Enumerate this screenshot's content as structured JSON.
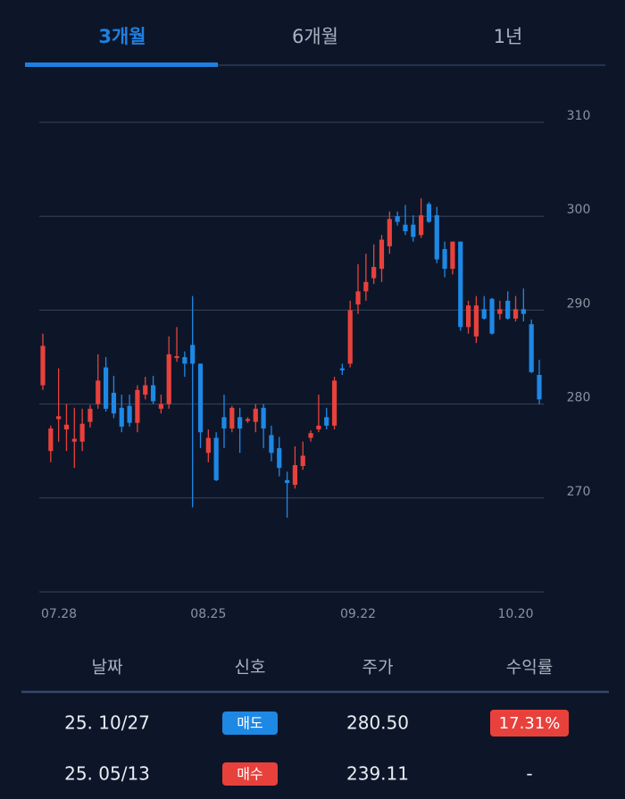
{
  "tabs": [
    "3개월",
    "6개월",
    "1년"
  ],
  "chart_data": {
    "type": "candlestick",
    "categories": [
      "07.28",
      null,
      null,
      null,
      null,
      null,
      null,
      null,
      null,
      null,
      null,
      null,
      null,
      null,
      null,
      null,
      null,
      null,
      null,
      null,
      null,
      "08.25",
      null,
      null,
      null,
      null,
      null,
      null,
      null,
      null,
      null,
      null,
      null,
      null,
      null,
      null,
      null,
      null,
      null,
      null,
      "09.22",
      null,
      null,
      null,
      null,
      null,
      null,
      null,
      null,
      null,
      null,
      null,
      null,
      null,
      null,
      null,
      null,
      null,
      null,
      null,
      "10.20",
      null,
      null,
      null
    ],
    "open": [
      282.0,
      275.0,
      278.4,
      277.3,
      276.0,
      276.0,
      278.1,
      280.0,
      283.9,
      281.2,
      279.6,
      279.8,
      278.0,
      281.0,
      282.0,
      279.5,
      280.0,
      284.9,
      285.0,
      286.3,
      284.3,
      274.8,
      276.4,
      278.6,
      277.4,
      278.6,
      278.2,
      278.1,
      279.6,
      276.7,
      275.3,
      271.9,
      271.4,
      273.4,
      276.4,
      277.3,
      278.6,
      277.7,
      283.8,
      284.3,
      290.6,
      292.0,
      293.4,
      294.4,
      296.8,
      300.0,
      299.1,
      299.1,
      298.0,
      301.3,
      300.1,
      296.5,
      294.4,
      297.3,
      288.2,
      287.2,
      290.1,
      291.2,
      289.6,
      291.0,
      289.1,
      290.1,
      288.5,
      283.1
    ],
    "high": [
      287.5,
      277.7,
      283.8,
      280.0,
      279.6,
      279.5,
      279.9,
      285.3,
      285.0,
      283.0,
      281.0,
      281.0,
      282.0,
      282.9,
      283.0,
      281.0,
      287.2,
      288.2,
      285.6,
      291.5,
      284.3,
      277.3,
      277.0,
      281.0,
      279.8,
      279.6,
      278.6,
      280.0,
      280.0,
      277.7,
      276.5,
      272.8,
      275.5,
      276.0,
      277.2,
      281.0,
      279.6,
      282.9,
      284.3,
      291.0,
      294.9,
      296.0,
      297.0,
      298.0,
      300.5,
      300.5,
      301.2,
      300.1,
      301.9,
      301.5,
      301.0,
      297.3,
      297.3,
      297.3,
      291.0,
      291.5,
      291.5,
      291.3,
      291.0,
      292.0,
      291.5,
      292.3,
      289.0,
      284.7
    ],
    "low": [
      281.5,
      273.8,
      276.0,
      275.0,
      273.2,
      275.0,
      277.5,
      279.5,
      279.2,
      278.5,
      277.0,
      277.6,
      277.0,
      280.5,
      280.0,
      279.0,
      279.5,
      284.5,
      282.9,
      269.0,
      275.3,
      273.8,
      271.8,
      275.3,
      277.0,
      274.8,
      278.0,
      277.0,
      275.3,
      273.9,
      272.3,
      267.9,
      271.0,
      273.0,
      276.0,
      277.0,
      277.3,
      277.3,
      283.1,
      283.9,
      289.6,
      291.0,
      292.8,
      293.0,
      296.0,
      299.0,
      298.0,
      297.3,
      297.7,
      299.3,
      295.0,
      293.5,
      293.8,
      287.8,
      287.5,
      286.5,
      289.0,
      287.4,
      289.0,
      289.0,
      288.8,
      288.8,
      283.3,
      280.0
    ],
    "close": [
      286.2,
      277.4,
      278.7,
      277.8,
      276.3,
      277.9,
      279.5,
      282.5,
      279.5,
      279.0,
      277.6,
      278.0,
      281.5,
      282.0,
      280.3,
      280.0,
      285.3,
      285.1,
      284.3,
      284.3,
      277.0,
      276.4,
      271.9,
      277.4,
      279.6,
      277.4,
      278.4,
      279.5,
      277.4,
      274.8,
      273.2,
      271.6,
      273.5,
      274.5,
      276.9,
      277.7,
      277.7,
      282.5,
      283.6,
      290.0,
      292.0,
      293.0,
      294.6,
      297.5,
      299.7,
      299.4,
      298.4,
      297.8,
      300.1,
      299.4,
      295.4,
      294.4,
      297.3,
      288.2,
      290.5,
      290.5,
      289.1,
      287.5,
      290.1,
      289.1,
      290.1,
      289.6,
      283.4,
      280.5
    ],
    "up_color": "#e8413c",
    "down_color": "#1e88e5",
    "ylim": [
      260,
      310
    ],
    "yticks": [
      270,
      280,
      290,
      300,
      310
    ],
    "grid": true
  },
  "table": {
    "header": [
      "날짜",
      "신호",
      "주가",
      "수익률"
    ],
    "rows": [
      [
        "25. 10/27",
        "매도",
        "280.50",
        "17.31%"
      ],
      [
        "25. 05/13",
        "매수",
        "239.11",
        "-"
      ]
    ]
  }
}
